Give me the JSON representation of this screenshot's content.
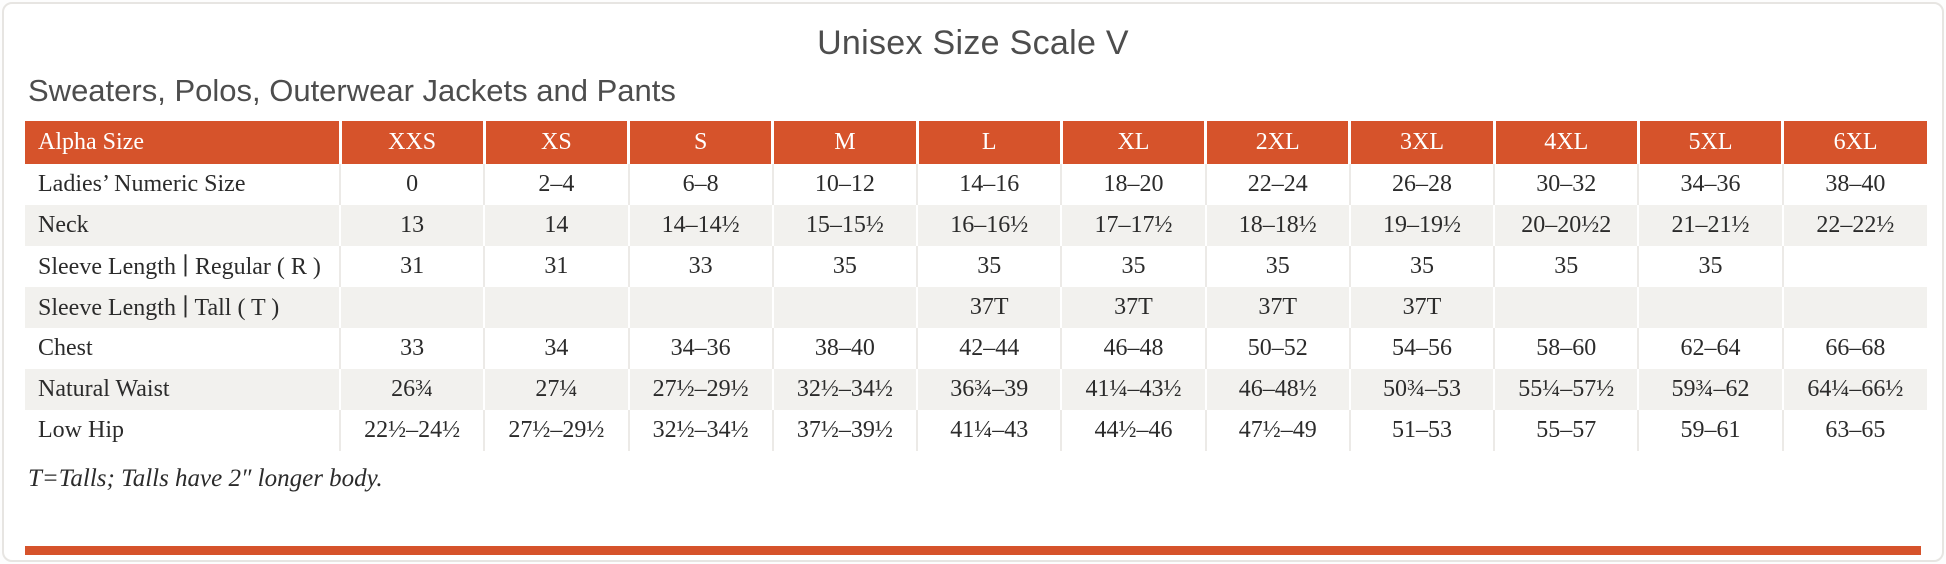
{
  "page": {
    "title": "Unisex Size Scale V",
    "subtitle": "Sweaters, Polos, Outerwear Jackets and Pants",
    "footnote": "T=Talls; Talls have 2″ longer body."
  },
  "colors": {
    "accent": "#d6532b",
    "row_alt": "#f2f1ee",
    "text": "#2b2b2b",
    "heading_text": "#4d4d4d"
  },
  "chart_data": {
    "type": "table",
    "columns": [
      "Alpha Size",
      "XXS",
      "XS",
      "S",
      "M",
      "L",
      "XL",
      "2XL",
      "3XL",
      "4XL",
      "5XL",
      "6XL"
    ],
    "rows": [
      {
        "label": "Ladies’ Numeric Size",
        "values": [
          "0",
          "2–4",
          "6–8",
          "10–12",
          "14–16",
          "18–20",
          "22–24",
          "26–28",
          "30–32",
          "34–36",
          "38–40"
        ]
      },
      {
        "label": "Neck",
        "values": [
          "13",
          "14",
          "14–14½",
          "15–15½",
          "16–16½",
          "17–17½",
          "18–18½",
          "19–19½",
          "20–20½2",
          "21–21½",
          "22–22½"
        ]
      },
      {
        "label": "Sleeve Length ∣ Regular ( R )",
        "values": [
          "31",
          "31",
          "33",
          "35",
          "35",
          "35",
          "35",
          "35",
          "35",
          "35",
          ""
        ]
      },
      {
        "label": "Sleeve Length ∣ Tall ( T )",
        "values": [
          "",
          "",
          "",
          "",
          "37T",
          "37T",
          "37T",
          "37T",
          "",
          "",
          ""
        ]
      },
      {
        "label": "Chest",
        "values": [
          "33",
          "34",
          "34–36",
          "38–40",
          "42–44",
          "46–48",
          "50–52",
          "54–56",
          "58–60",
          "62–64",
          "66–68"
        ]
      },
      {
        "label": "Natural Waist",
        "values": [
          "26¾",
          "27¼",
          "27½–29½",
          "32½–34½",
          "36¾–39",
          "41¼–43½",
          "46–48½",
          "50¾–53",
          "55¼–57½",
          "59¾–62",
          "64¼–66½"
        ]
      },
      {
        "label": "Low Hip",
        "values": [
          "22½–24½",
          "27½–29½",
          "32½–34½",
          "37½–39½",
          "41¼–43",
          "44½–46",
          "47½–49",
          "51–53",
          "55–57",
          "59–61",
          "63–65"
        ]
      }
    ]
  }
}
